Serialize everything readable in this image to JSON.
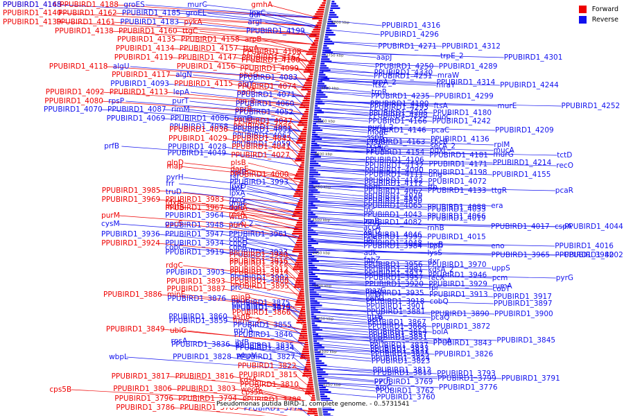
{
  "colors": {
    "forward": "#ee0000",
    "reverse": "#1010ee",
    "backbone": "#9a9a9a"
  },
  "legend": {
    "forward": "Forward",
    "reverse": "Reverse"
  },
  "footer": "Pseudomonas putida BIRD-1, complete genome. - 0..5731541",
  "ticks": [
    "4800 kbp",
    "4750 kbp",
    "4700 kbp",
    "4650 kbp",
    "4600 kbp",
    "4550 kbp",
    "4500 kbp",
    "4450 kbp",
    "4400 kbp",
    "4350 kbp",
    "4300 kbp",
    "4250 kbp"
  ],
  "left_labels": [
    [
      "PPUBIRD1_4145",
      "F",
      10
    ],
    [
      "PPUBIRD1_4168",
      "R",
      10
    ],
    [
      "PPUBIRD1_4188",
      "F",
      10
    ],
    [
      "groES",
      "R",
      10
    ],
    [
      "murC",
      "R",
      10
    ],
    [
      "gmhA",
      "F",
      10
    ],
    [
      "PPUBIRD1_4140",
      "F",
      22
    ],
    [
      "PPUBIRD1_4162",
      "F",
      22
    ],
    [
      "PPUBIRD1_4185",
      "R",
      22
    ],
    [
      "groEL",
      "R",
      22
    ],
    [
      "lpxC",
      "R",
      22
    ],
    [
      "ddl",
      "R",
      25
    ],
    [
      "PPUBIRD1_4139",
      "F",
      35
    ],
    [
      "PPUBIRD1_4161",
      "F",
      35
    ],
    [
      "PPUBIRD1_4183",
      "R",
      35
    ],
    [
      "pykA",
      "F",
      35
    ],
    [
      "argI",
      "R",
      35
    ],
    [
      "PPUBIRD1_4138",
      "F",
      48
    ],
    [
      "PPUBIRD1_4160",
      "F",
      48
    ],
    [
      "ttgC",
      "F",
      48
    ],
    [
      "PPUBIRD1_4199",
      "R",
      48
    ],
    [
      "PPUBIRD1_4135",
      "F",
      60
    ],
    [
      "PPUBIRD1_4158",
      "F",
      60
    ],
    [
      "arpB",
      "F",
      60
    ],
    [
      "PPUBIRD1_4134",
      "F",
      73
    ],
    [
      "PPUBIRD1_4157",
      "F",
      73
    ],
    [
      "ttgA",
      "F",
      73
    ],
    [
      "PPUBIRD1_4108",
      "F",
      78
    ],
    [
      "PPUBIRD1_4119",
      "F",
      86
    ],
    [
      "PPUBIRD1_4147",
      "F",
      86
    ],
    [
      "PPUBIRD1_4167",
      "F",
      86
    ],
    [
      "PPUBIRD1_4100",
      "F",
      90
    ],
    [
      "PPUBIRD1_4118",
      "F",
      99
    ],
    [
      "algU",
      "R",
      99
    ],
    [
      "PPUBIRD1_4156",
      "F",
      99
    ],
    [
      "PPUBIRD1_4099",
      "F",
      102
    ],
    [
      "PPUBIRD1_4117",
      "F",
      111
    ],
    [
      "algN",
      "R",
      111
    ],
    [
      "phaG",
      "F",
      111
    ],
    [
      "PPUBIRD1_4083",
      "R",
      115
    ],
    [
      "PPUBIRD1_4093",
      "R",
      124
    ],
    [
      "PPUBIRD1_4115",
      "F",
      124
    ],
    [
      "algY",
      "R",
      124
    ],
    [
      "PPUBIRD1_4074",
      "F",
      128
    ],
    [
      "PPUBIRD1_4092",
      "F",
      136
    ],
    [
      "PPUBIRD1_4113",
      "F",
      136
    ],
    [
      "lepA",
      "R",
      136
    ],
    [
      "nadB",
      "F",
      136
    ],
    [
      "PPUBIRD1_4071",
      "R",
      140
    ],
    [
      "PPUBIRD1_4080",
      "F",
      149
    ],
    [
      "rpsP",
      "R",
      149
    ],
    [
      "purT",
      "R",
      149
    ],
    [
      "lon_2",
      "F",
      149
    ],
    [
      "PPUBIRD1_4060",
      "R",
      153
    ],
    [
      "PPUBIRD1_4070",
      "R",
      161
    ],
    [
      "PPUBIRD1_4087",
      "R",
      161
    ],
    [
      "rimM",
      "R",
      161
    ],
    [
      "oprB",
      "F",
      161
    ],
    [
      "PPUBIRD1_4052",
      "R",
      165
    ],
    [
      "PPUBIRD1_4069",
      "R",
      174
    ],
    [
      "PPUBIRD1_4086",
      "R",
      174
    ],
    [
      "trmD",
      "R",
      174
    ],
    [
      "PPUBIRD1_4047",
      "F",
      178
    ],
    [
      "PPUBIRD1_4068",
      "R",
      186
    ],
    [
      "PPUBIRD1_4085",
      "F",
      186
    ],
    [
      "PPUBIRD1_4036",
      "F",
      190
    ],
    [
      "PPUBIRD1_4051",
      "R",
      190
    ],
    [
      "PPUBIRD1_4067",
      "R",
      199
    ],
    [
      "PPUBIRD1_4029",
      "F",
      203
    ],
    [
      "PPUBIRD1_4045",
      "F",
      203
    ],
    [
      "PPUBIRD1_4059",
      "R",
      211
    ],
    [
      "prfB",
      "R",
      214
    ],
    [
      "PPUBIRD1_4028",
      "R",
      215
    ],
    [
      "PPUBIRD1_4041",
      "F",
      215
    ],
    [
      "PPUBIRD1_4049",
      "R",
      224
    ],
    [
      "PPUBIRD1_4027",
      "F",
      227
    ],
    [
      "glnD",
      "F",
      238
    ],
    [
      "plsB",
      "F",
      238
    ],
    [
      "map",
      "F",
      243
    ],
    [
      "dapE",
      "F",
      247
    ],
    [
      "rpsB",
      "R",
      252
    ],
    [
      "PPUBIRD1_4000",
      "F",
      255
    ],
    [
      "pyrH",
      "R",
      259
    ],
    [
      "tsf",
      "R",
      259
    ],
    [
      "PPUBIRD1_3993",
      "R",
      266
    ],
    [
      "frr",
      "R",
      268
    ],
    [
      "lpxD",
      "R",
      272
    ],
    [
      "PPUBIRD1_3985",
      "F",
      278
    ],
    [
      "ispF",
      "R",
      275
    ],
    [
      "truD",
      "R",
      280
    ],
    [
      "lpxA",
      "R",
      282
    ],
    [
      "PPUBIRD1_3969",
      "F",
      291
    ],
    [
      "PPUBIRD1_3983",
      "F",
      291
    ],
    [
      "rpoS",
      "R",
      291
    ],
    [
      "fdxA",
      "F",
      296
    ],
    [
      "dnaE",
      "R",
      296
    ],
    [
      "PPUBIRD1_3967",
      "F",
      303
    ],
    [
      "dgkA",
      "F",
      303
    ],
    [
      "mutS",
      "F",
      302
    ],
    [
      "surE",
      "R",
      302
    ],
    [
      "purM",
      "F",
      314
    ],
    [
      "PPUBIRD1_3964",
      "R",
      314
    ],
    [
      "wrbA",
      "F",
      316
    ],
    [
      "recA",
      "F",
      312
    ],
    [
      "PPUBIRD1_3948",
      "R",
      328
    ],
    [
      "purN",
      "F",
      328
    ],
    [
      "cysM",
      "R",
      326
    ],
    [
      "gacS",
      "F",
      326
    ],
    [
      "arsC_2",
      "R",
      326
    ],
    [
      "PPUBIRD1_3936",
      "R",
      341
    ],
    [
      "PPUBIRD1_3947",
      "R",
      341
    ],
    [
      "PPUBIRD1_3961",
      "R",
      341
    ],
    [
      "cobO",
      "R",
      348
    ],
    [
      "PPUBIRD1_3924",
      "F",
      354
    ],
    [
      "PPUBIRD1_3934",
      "R",
      354
    ],
    [
      "cobD",
      "R",
      354
    ],
    [
      "cobC",
      "R",
      360
    ],
    [
      "cobB",
      "R",
      360
    ],
    [
      "PPUBIRD1_3919",
      "R",
      367
    ],
    [
      "PPUBIRD1_3923",
      "R",
      367
    ],
    [
      "PPUBIRD1_3930",
      "F",
      371
    ],
    [
      "PPUBIRD1_3916",
      "F",
      380
    ],
    [
      "rdgC",
      "F",
      386
    ],
    [
      "PPUBIRD1_3922",
      "F",
      383
    ],
    [
      "PPUBIRD1_3903",
      "R",
      396
    ],
    [
      "PPUBIRD1_3912",
      "F",
      392
    ],
    [
      "PPUBIRD1_3914",
      "F",
      396
    ],
    [
      "PPUBIRD1_3893",
      "F",
      409
    ],
    [
      "PPUBIRD1_3902",
      "R",
      404
    ],
    [
      "PPUBIRD1_3908",
      "F",
      408
    ],
    [
      "PPUBIRD1_3887",
      "F",
      420
    ],
    [
      "PPUBIRD1_3895",
      "F",
      416
    ],
    [
      "prc",
      "R",
      418
    ],
    [
      "PPUBIRD1_3876",
      "R",
      434
    ],
    [
      "PPUBIRD1_3886",
      "F",
      428
    ],
    [
      "minE",
      "F",
      428
    ],
    [
      "minD",
      "F",
      432
    ],
    [
      "minC",
      "F",
      436
    ],
    [
      "PPUBIRD1_3870",
      "R",
      446
    ],
    [
      "PPUBIRD1_3875",
      "R",
      440
    ],
    [
      "PPUBIRD1_3873",
      "R",
      448
    ],
    [
      "PPUBIRD1_3860",
      "R",
      460
    ],
    [
      "PPUBIRD1_3866",
      "F",
      454
    ],
    [
      "asnB",
      "F",
      460
    ],
    [
      "PPUBIRD1_3859",
      "R",
      466
    ],
    [
      "fumC_2",
      "F",
      466
    ],
    [
      "PPUBIRD1_3855",
      "R",
      472
    ],
    [
      "PPUBIRD1_3849",
      "F",
      478
    ],
    [
      "ubiG",
      "F",
      480
    ],
    [
      "mtnA",
      "R",
      480
    ],
    [
      "PPUBIRD1_3846",
      "R",
      486
    ],
    [
      "rpsA",
      "R",
      495
    ],
    [
      "ihfB",
      "R",
      497
    ],
    [
      "PPUBIRD1_3836",
      "R",
      500
    ],
    [
      "PPUBIRD1_3835",
      "R",
      502
    ],
    [
      "PPUBIRD1_3834",
      "R",
      505
    ],
    [
      "wbpV",
      "R",
      516
    ],
    [
      "wbpL",
      "R",
      518
    ],
    [
      "PPUBIRD1_3828",
      "R",
      518
    ],
    [
      "PPUBIRD1_3827",
      "R",
      518
    ],
    [
      "PPUBIRD1_3822",
      "F",
      531
    ],
    [
      "PPUBIRD1_3817",
      "F",
      546
    ],
    [
      "PPUBIRD1_3816",
      "F",
      546
    ],
    [
      "PPUBIRD1_3815",
      "F",
      544
    ],
    [
      "kdsA",
      "F",
      551
    ],
    [
      "PPUBIRD1_3810",
      "F",
      558
    ],
    [
      "cps5A",
      "F",
      569
    ],
    [
      "cps5B",
      "F",
      565
    ],
    [
      "PPUBIRD1_3806",
      "F",
      564
    ],
    [
      "PPUBIRD1_3803",
      "F",
      564
    ],
    [
      "wecB",
      "F",
      565
    ],
    [
      "PPUBIRD1_3796",
      "F",
      578
    ],
    [
      "PPUBIRD1_3794",
      "F",
      578
    ],
    [
      "PPUBIRD1_3788",
      "F",
      580
    ],
    [
      "PPUBIRD1_3786",
      "F",
      591
    ],
    [
      "PPUBIRD1_3783",
      "F",
      591
    ],
    [
      "PPUBIRD1_3774",
      "R",
      592
    ]
  ],
  "right_labels": [
    [
      "PPUBIRD1_4316",
      "R",
      40
    ],
    [
      "PPUBIRD1_4296",
      "R",
      53
    ],
    [
      "PPUBIRD1_4271",
      "R",
      70
    ],
    [
      "PPUBIRD1_4312",
      "R",
      70
    ],
    [
      "aapJ",
      "R",
      86
    ],
    [
      "trpE_2",
      "R",
      84
    ],
    [
      "PPUBIRD1_4301",
      "R",
      86
    ],
    [
      "PPUBIRD1_4250",
      "R",
      99
    ],
    [
      "PPUBIRD1_4289",
      "R",
      99
    ],
    [
      "PPUBIRD1_4330",
      "R",
      108
    ],
    [
      "mraW",
      "R",
      112
    ],
    [
      "PPUBIRD1_4251",
      "R",
      113
    ],
    [
      "trpA_2",
      "R",
      122
    ],
    [
      "PPUBIRD1_4314",
      "R",
      122
    ],
    [
      "ftsZ",
      "R",
      126
    ],
    [
      "mraY",
      "R",
      126
    ],
    [
      "PPUBIRD1_4244",
      "R",
      126
    ],
    [
      "trpR",
      "R",
      136
    ],
    [
      "PPUBIRD1_4190",
      "R",
      153
    ],
    [
      "ftsA",
      "R",
      156
    ],
    [
      "murE",
      "R",
      156
    ],
    [
      "PPUBIRD1_4235",
      "R",
      142
    ],
    [
      "PPUBIRD1_4252",
      "R",
      156
    ],
    [
      "PPUBIRD1_4299",
      "R",
      142
    ],
    [
      "PPUBIRD1_4293",
      "R",
      158
    ],
    [
      "PPUBIRD1_4205",
      "R",
      166
    ],
    [
      "PPUBIRD1_4180",
      "R",
      166
    ],
    [
      "PPUBIRD1_4208",
      "R",
      170
    ],
    [
      "mioC",
      "R",
      172
    ],
    [
      "PPUBIRD1_4166",
      "R",
      178
    ],
    [
      "PPUBIRD1_4242",
      "R",
      178
    ],
    [
      "PPUBIRD1_4146",
      "R",
      191
    ],
    [
      "pcaC",
      "R",
      191
    ],
    [
      "purU_2",
      "R",
      187
    ],
    [
      "PPUBIRD1_4209",
      "R",
      191
    ],
    [
      "moaE",
      "R",
      194
    ],
    [
      "sspB",
      "R",
      201
    ],
    [
      "moaD",
      "R",
      206
    ],
    [
      "PPUBIRD1_4136",
      "R",
      204
    ],
    [
      "PPUBIRD1_4163",
      "R",
      208
    ],
    [
      "sbcB",
      "R",
      208
    ],
    [
      "fxsA",
      "R",
      214
    ],
    [
      "secA_2",
      "R",
      214
    ],
    [
      "rplM",
      "R",
      212
    ],
    [
      "cysNC",
      "R",
      218
    ],
    [
      "pdxJ",
      "R",
      220
    ],
    [
      "mucA",
      "R",
      220
    ],
    [
      "PPUBIRD1_4154",
      "R",
      223
    ],
    [
      "PPUBIRD1_4181",
      "R",
      227
    ],
    [
      "murG",
      "R",
      226
    ],
    [
      "tctD",
      "R",
      227
    ],
    [
      "PPUBIRD1_4106",
      "R",
      234
    ],
    [
      "PPUBIRD1_4132",
      "R",
      242
    ],
    [
      "PPUBIRD1_4171",
      "R",
      240
    ],
    [
      "PPUBIRD1_4214",
      "R",
      238
    ],
    [
      "PPUBIRD1_4090",
      "R",
      249
    ],
    [
      "recO",
      "R",
      242
    ],
    [
      "PPUBIRD1_4111",
      "R",
      255
    ],
    [
      "ung",
      "R",
      255
    ],
    [
      "PPUBIRD1_4155",
      "R",
      255
    ],
    [
      "PPUBIRD1_4198",
      "R",
      252
    ],
    [
      "PPUBIRD1_4182",
      "R",
      264
    ],
    [
      "PPUBIRD1_4072",
      "R",
      265
    ],
    [
      "hom",
      "R",
      273
    ],
    [
      "ffh",
      "R",
      273
    ],
    [
      "PPUBIRD1_4112",
      "R",
      268
    ],
    [
      "PPUBIRD1_4062",
      "R",
      279
    ],
    [
      "PPUBIRD1_4079",
      "R",
      286
    ],
    [
      "PPUBIRD1_4105",
      "R",
      290
    ],
    [
      "PPUBIRD1_4133",
      "R",
      278
    ],
    [
      "ttgR",
      "R",
      278
    ],
    [
      "pcaR",
      "R",
      278
    ],
    [
      "PPUBIRD1_4050",
      "R",
      293
    ],
    [
      "PPUBIRD1_4065",
      "R",
      300
    ],
    [
      "PPUBIRD1_4088",
      "R",
      302
    ],
    [
      "era",
      "R",
      300
    ],
    [
      "rnc",
      "R",
      306
    ],
    [
      "PPUBIRD1_4033",
      "R",
      305
    ],
    [
      "PPUBIRD1_4043",
      "R",
      313
    ],
    [
      "PPUBIRD1_4066",
      "R",
      315
    ],
    [
      "lepB",
      "R",
      322
    ],
    [
      "PPUBIRD1_4019",
      "R",
      318
    ],
    [
      "PPUBIRD1_4082",
      "R",
      324
    ],
    [
      "accA",
      "R",
      331
    ],
    [
      "rnhB",
      "R",
      332
    ],
    [
      "PPUBIRD1_4017",
      "R",
      330
    ],
    [
      "cspA",
      "R",
      330
    ],
    [
      "PPUBIRD1_4044",
      "R",
      330
    ],
    [
      "xerD",
      "R",
      337
    ],
    [
      "PPUBIRD1_3999",
      "R",
      345
    ],
    [
      "PPUBIRD1_4015",
      "R",
      345
    ],
    [
      "PPUBIRD1_4046",
      "R",
      342
    ],
    [
      "PPUBIRD1_4048",
      "R",
      354
    ],
    [
      "rplS",
      "R",
      348
    ],
    [
      "PPUBIRD1_3984",
      "R",
      358
    ],
    [
      "ispD",
      "R",
      358
    ],
    [
      "eno",
      "R",
      358
    ],
    [
      "lpxB",
      "R",
      356
    ],
    [
      "PPUBIRD1_4016",
      "R",
      358
    ],
    [
      "adk",
      "R",
      368
    ],
    [
      "lysS",
      "R",
      368
    ],
    [
      "PPUBIRD1_3965",
      "R",
      371
    ],
    [
      "PPUBIRD1_3982",
      "R",
      371
    ],
    [
      "PPUBIRD1_4002",
      "R",
      371
    ],
    [
      "fabZ",
      "R",
      378
    ],
    [
      "dxr",
      "R",
      380
    ],
    [
      "PPUBIRD1_3956",
      "R",
      385
    ],
    [
      "PPUBIRD1_3970",
      "R",
      385
    ],
    [
      "PPUBIRD1_3981",
      "R",
      392
    ],
    [
      "kdsA_2",
      "R",
      392
    ],
    [
      "uppS",
      "R",
      390
    ],
    [
      "PPUBIRD1_3937",
      "R",
      398
    ],
    [
      "PPUBIRD1_3946",
      "R",
      400
    ],
    [
      "PPUBIRD1_3957",
      "R",
      404
    ],
    [
      "recX",
      "R",
      404
    ],
    [
      "pcm",
      "R",
      404
    ],
    [
      "pyrG",
      "R",
      404
    ],
    [
      "PPUBIRD1_3920",
      "R",
      413
    ],
    [
      "PPUBIRD1_3929",
      "R",
      413
    ],
    [
      "rumA",
      "R",
      416
    ],
    [
      "mazG",
      "R",
      422
    ],
    [
      "fpr",
      "R",
      418
    ],
    [
      "nirD",
      "R",
      428
    ],
    [
      "PPUBIRD1_3913",
      "R",
      428
    ],
    [
      "cobT",
      "R",
      420
    ],
    [
      "PPUBIRD1_3917",
      "R",
      431
    ],
    [
      "PPUBIRD1_3935",
      "R",
      426
    ],
    [
      "PPUBIRD1_3918",
      "R",
      438
    ],
    [
      "cobU",
      "R",
      434
    ],
    [
      "cobQ",
      "R",
      438
    ],
    [
      "PPUBIRD1_3897",
      "R",
      441
    ],
    [
      "PPUBIRD1_3901",
      "R",
      445
    ],
    [
      "PPUBIRD1_3881",
      "R",
      453
    ],
    [
      "htrB",
      "R",
      460
    ],
    [
      "PPUBIRD1_3890",
      "R",
      456
    ],
    [
      "PPUBIRD1_3900",
      "R",
      456
    ],
    [
      "pcaQ",
      "R",
      461
    ],
    [
      "PPUBIRD1_3867",
      "R",
      468
    ],
    [
      "actP",
      "R",
      464
    ],
    [
      "PPUBIRD1_3868",
      "R",
      474
    ],
    [
      "PPUBIRD1_3872",
      "R",
      474
    ],
    [
      "PPUBIRD1_3854",
      "R",
      482
    ],
    [
      "bolA",
      "R",
      482
    ],
    [
      "PPUBIRD1_3851",
      "R",
      490
    ],
    [
      "PPUBIRD1_3857",
      "R",
      486
    ],
    [
      "cmk",
      "R",
      495
    ],
    [
      "pheA",
      "R",
      495
    ],
    [
      "PPUBIRD1_3845",
      "R",
      494
    ],
    [
      "PPUBIRD1_3837",
      "R",
      501
    ],
    [
      "PPUBIRD1_3843",
      "R",
      498
    ],
    [
      "PPUBIRD1_3831",
      "R",
      509
    ],
    [
      "PPUBIRD1_3833",
      "R",
      506
    ],
    [
      "PPUBIRD1_3824",
      "R",
      520
    ],
    [
      "PPUBIRD1_3825",
      "R",
      514
    ],
    [
      "PPUBIRD1_3826",
      "R",
      514
    ],
    [
      "PPUBIRD1_3823",
      "R",
      524
    ],
    [
      "PPUBIRD1_3813",
      "R",
      541
    ],
    [
      "PPUBIRD1_3812",
      "R",
      537
    ],
    [
      "PPUBIRD1_3793",
      "R",
      542
    ],
    [
      "pyrF",
      "R",
      552
    ],
    [
      "PPUBIRD1_3799",
      "R",
      549
    ],
    [
      "PPUBIRD1_3791",
      "R",
      549
    ],
    [
      "PPUBIRD1_3769",
      "R",
      554
    ],
    [
      "aroC",
      "R",
      562
    ],
    [
      "PPUBIRD1_3776",
      "R",
      562
    ],
    [
      "PPUBIRD1_3762",
      "R",
      567
    ],
    [
      "PPUBIRD1_3760",
      "R",
      576
    ]
  ]
}
